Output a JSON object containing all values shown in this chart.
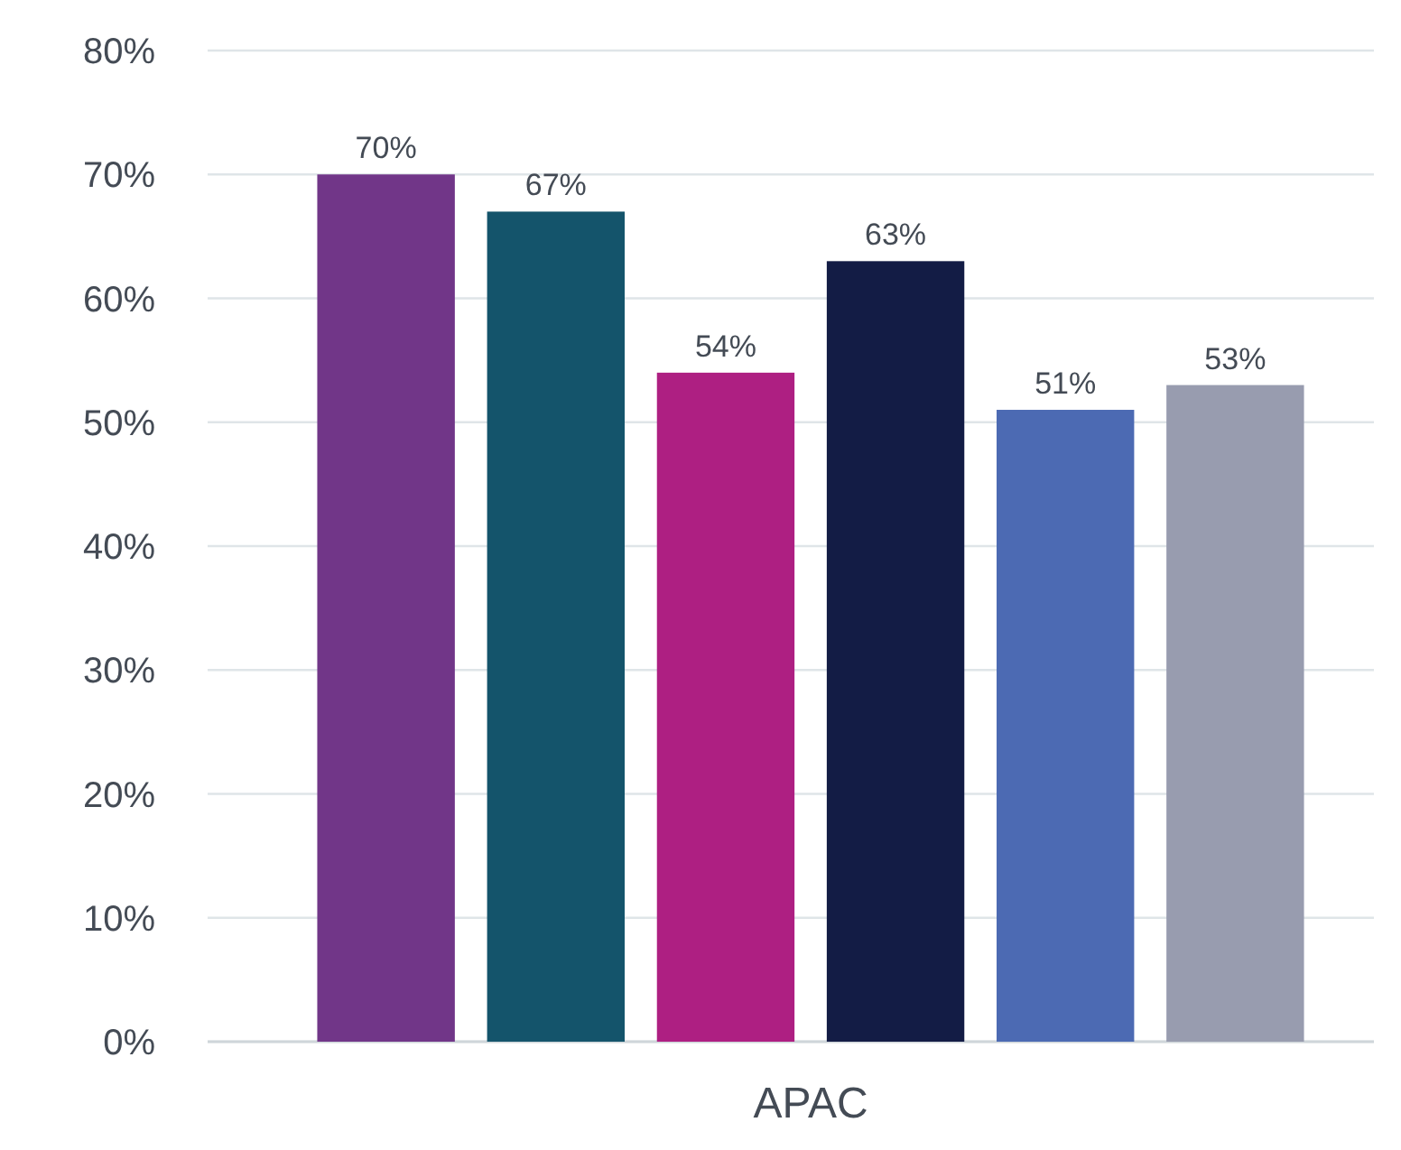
{
  "chart_data": {
    "type": "bar",
    "categories": [
      "APAC"
    ],
    "series": [
      {
        "color": "#713688",
        "values": [
          70
        ],
        "value_labels": [
          "70%"
        ]
      },
      {
        "color": "#14546b",
        "values": [
          67
        ],
        "value_labels": [
          "67%"
        ]
      },
      {
        "color": "#ae1f82",
        "values": [
          54
        ],
        "value_labels": [
          "54%"
        ]
      },
      {
        "color": "#131c45",
        "values": [
          63
        ],
        "value_labels": [
          "63%"
        ]
      },
      {
        "color": "#4c6ab3",
        "values": [
          51
        ],
        "value_labels": [
          "51%"
        ]
      },
      {
        "color": "#989caf",
        "values": [
          53
        ],
        "value_labels": [
          "53%"
        ]
      }
    ],
    "ylim": [
      0,
      80
    ],
    "yticks": [
      {
        "value": 0,
        "label": "0%"
      },
      {
        "value": 10,
        "label": "10%"
      },
      {
        "value": 20,
        "label": "20%"
      },
      {
        "value": 30,
        "label": "30%"
      },
      {
        "value": 40,
        "label": "40%"
      },
      {
        "value": 50,
        "label": "50%"
      },
      {
        "value": 60,
        "label": "60%"
      },
      {
        "value": 70,
        "label": "70%"
      },
      {
        "value": 80,
        "label": "80%"
      }
    ],
    "grid": "y"
  }
}
